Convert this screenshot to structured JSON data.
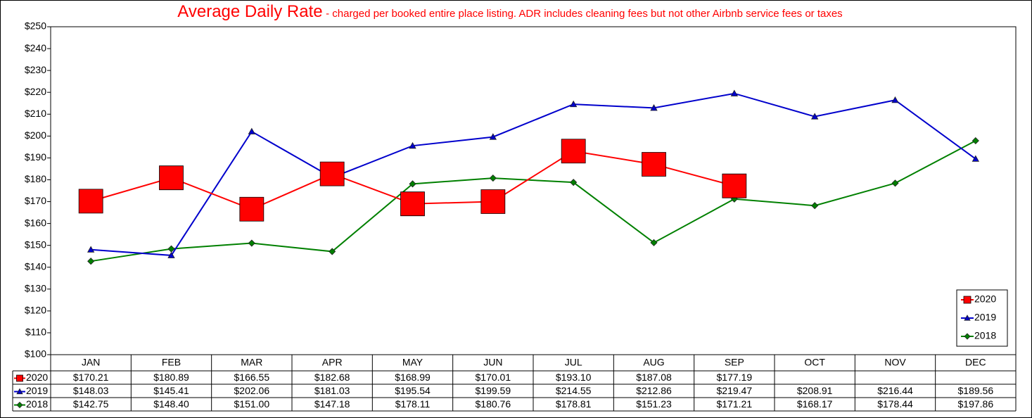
{
  "chart_data": {
    "type": "line",
    "title": "Average Daily Rate",
    "subtitle": "- charged per booked entire place listing. ADR includes cleaning fees but not other Airbnb service fees or taxes",
    "categories": [
      "JAN",
      "FEB",
      "MAR",
      "APR",
      "MAY",
      "JUN",
      "JUL",
      "AUG",
      "SEP",
      "OCT",
      "NOV",
      "DEC"
    ],
    "series": [
      {
        "name": "2020",
        "color": "#ff0000",
        "marker": "square",
        "values": [
          170.21,
          180.89,
          166.55,
          182.68,
          168.99,
          170.01,
          193.1,
          187.08,
          177.19,
          null,
          null,
          null
        ],
        "value_labels": [
          "$170.21",
          "$180.89",
          "$166.55",
          "$182.68",
          "$168.99",
          "$170.01",
          "$193.10",
          "$187.08",
          "$177.19",
          null,
          null,
          null
        ]
      },
      {
        "name": "2019",
        "color": "#0000cc",
        "marker": "triangle",
        "values": [
          148.03,
          145.41,
          202.06,
          181.03,
          195.54,
          199.59,
          214.55,
          212.86,
          219.47,
          208.91,
          216.44,
          189.56
        ],
        "value_labels": [
          "$148.03",
          "$145.41",
          "$202.06",
          "$181.03",
          "$195.54",
          "$199.59",
          "$214.55",
          "$212.86",
          "$219.47",
          "$208.91",
          "$216.44",
          "$189.56"
        ]
      },
      {
        "name": "2018",
        "color": "#008000",
        "marker": "diamond",
        "values": [
          142.75,
          148.4,
          151.0,
          147.18,
          178.11,
          180.76,
          178.81,
          151.23,
          171.21,
          168.17,
          178.44,
          197.86
        ],
        "value_labels": [
          "$142.75",
          "$148.40",
          "$151.00",
          "$147.18",
          "$178.11",
          "$180.76",
          "$178.81",
          "$151.23",
          "$171.21",
          "$168.17",
          "$178.44",
          "$197.86"
        ]
      }
    ],
    "ylim": [
      100,
      250
    ],
    "yticks": [
      {
        "value": 100,
        "label": "$100"
      },
      {
        "value": 110,
        "label": "$110"
      },
      {
        "value": 120,
        "label": "$120"
      },
      {
        "value": 130,
        "label": "$130"
      },
      {
        "value": 140,
        "label": "$140"
      },
      {
        "value": 150,
        "label": "$150"
      },
      {
        "value": 160,
        "label": "$160"
      },
      {
        "value": 170,
        "label": "$170"
      },
      {
        "value": 180,
        "label": "$180"
      },
      {
        "value": 190,
        "label": "$190"
      },
      {
        "value": 200,
        "label": "$200"
      },
      {
        "value": 210,
        "label": "$210"
      },
      {
        "value": 220,
        "label": "$220"
      },
      {
        "value": 230,
        "label": "$230"
      },
      {
        "value": 240,
        "label": "$240"
      },
      {
        "value": 250,
        "label": "$250"
      }
    ],
    "grid": false,
    "legend": "lower right"
  }
}
